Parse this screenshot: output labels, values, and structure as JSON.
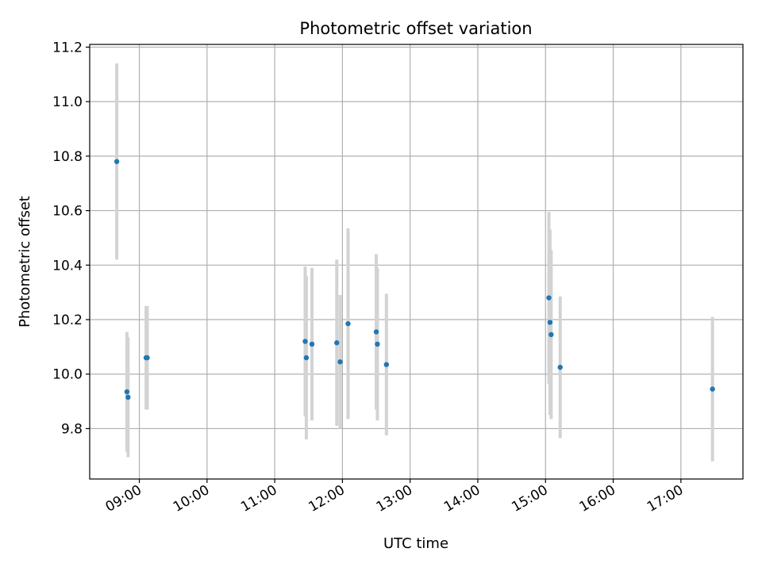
{
  "chart_data": {
    "type": "scatter",
    "title": "Photometric offset variation",
    "xlabel": "UTC time",
    "ylabel": "Photometric offset",
    "x_axis_kind": "time",
    "xlim": [
      "08:16",
      "17:55"
    ],
    "ylim": [
      9.615,
      11.21
    ],
    "grid": true,
    "x_ticks": [
      "09:00",
      "10:00",
      "11:00",
      "12:00",
      "13:00",
      "14:00",
      "15:00",
      "16:00",
      "17:00"
    ],
    "y_ticks": [
      "9.8",
      "10.0",
      "10.2",
      "10.4",
      "10.6",
      "10.8",
      "11.0",
      "11.2"
    ],
    "colors": {
      "point": "#1f77b4",
      "errorbar": "#d3d3d3",
      "grid": "#b0b0b0"
    },
    "points": [
      {
        "x": "08:40",
        "y": 10.78,
        "err": 0.36
      },
      {
        "x": "08:49",
        "y": 9.935,
        "err": 0.22
      },
      {
        "x": "08:50",
        "y": 9.915,
        "err": 0.22
      },
      {
        "x": "09:06",
        "y": 10.06,
        "err": 0.19
      },
      {
        "x": "09:07",
        "y": 10.06,
        "err": 0.19
      },
      {
        "x": "11:27",
        "y": 10.12,
        "err": 0.275
      },
      {
        "x": "11:28",
        "y": 10.06,
        "err": 0.3
      },
      {
        "x": "11:33",
        "y": 10.11,
        "err": 0.28
      },
      {
        "x": "11:55",
        "y": 10.115,
        "err": 0.305
      },
      {
        "x": "11:58",
        "y": 10.045,
        "err": 0.245
      },
      {
        "x": "12:05",
        "y": 10.185,
        "err": 0.35
      },
      {
        "x": "12:30",
        "y": 10.155,
        "err": 0.285
      },
      {
        "x": "12:31",
        "y": 10.11,
        "err": 0.28
      },
      {
        "x": "12:39",
        "y": 10.035,
        "err": 0.26
      },
      {
        "x": "15:03",
        "y": 10.28,
        "err": 0.315
      },
      {
        "x": "15:04",
        "y": 10.19,
        "err": 0.34
      },
      {
        "x": "15:05",
        "y": 10.145,
        "err": 0.31
      },
      {
        "x": "15:13",
        "y": 10.025,
        "err": 0.26
      },
      {
        "x": "17:28",
        "y": 9.945,
        "err": 0.265
      }
    ]
  }
}
